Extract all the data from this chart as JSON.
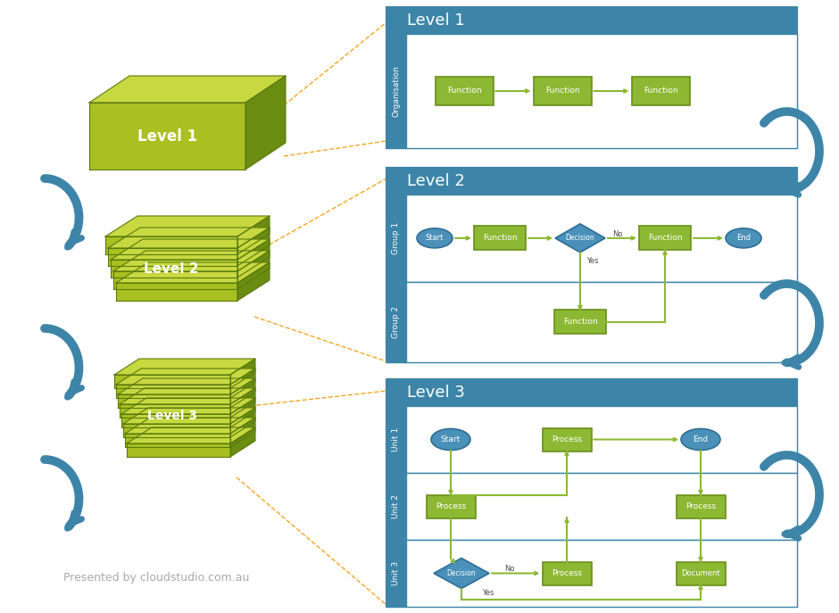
{
  "bg_color": "#ffffff",
  "title_bg": "#3d85a8",
  "title_text_color": "#ffffff",
  "swim_bg": "#3d85a8",
  "swim_text_color": "#ffffff",
  "panel_bg": "#f0f4f7",
  "panel_inner_bg": "#ffffff",
  "green_box": "#8db833",
  "green_box_edge": "#6a8f1a",
  "blue_oval": "#4a90b8",
  "blue_oval_edge": "#2e6e96",
  "diamond_fill": "#4a90b8",
  "diamond_edge": "#2e6e96",
  "arrow_color": "#8db833",
  "dashed_arrow": "#f5a623",
  "cyan_arrow": "#3d85a8",
  "outline_color": "#3d85a8",
  "text_dark": "#4a4a4a",
  "watermark": "Presented by cloudstudio.com.au",
  "levels": [
    "Level 1",
    "Level 2",
    "Level 3"
  ],
  "level1_swim": [
    "Organisation"
  ],
  "level2_swim": [
    "Group 1",
    "Group 2"
  ],
  "level3_swim": [
    "Unit 1",
    "Unit 2",
    "Unit 3"
  ]
}
